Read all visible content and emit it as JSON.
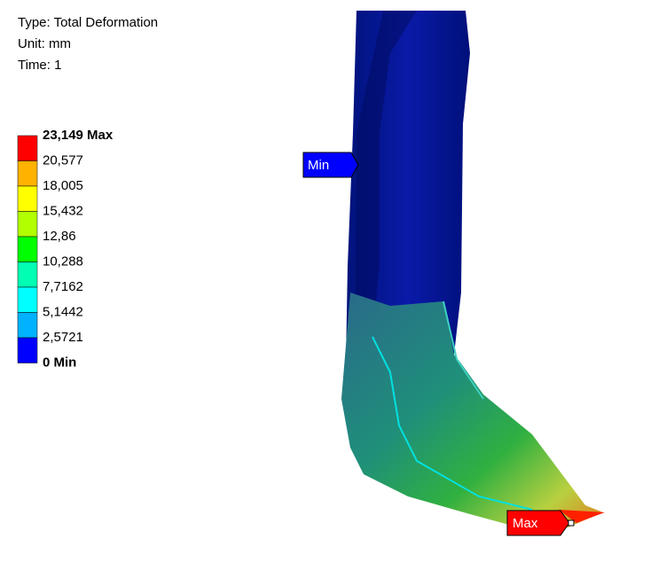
{
  "header": {
    "lines": [
      "Type: Total Deformation",
      "Unit: mm",
      "Time: 1"
    ]
  },
  "legend": {
    "labels": [
      "23,149 Max",
      "20,577",
      "18,005",
      "15,432",
      "12,86",
      "10,288",
      "7,7162",
      "5,1442",
      "2,5721",
      "0 Min"
    ],
    "colors": [
      "#ff0000",
      "#ffb200",
      "#ffff00",
      "#b2ff00",
      "#00ff00",
      "#00ffb2",
      "#00ffff",
      "#00b2ff",
      "#0000ff"
    ]
  },
  "probes": {
    "min": "Min",
    "max": "Max"
  }
}
